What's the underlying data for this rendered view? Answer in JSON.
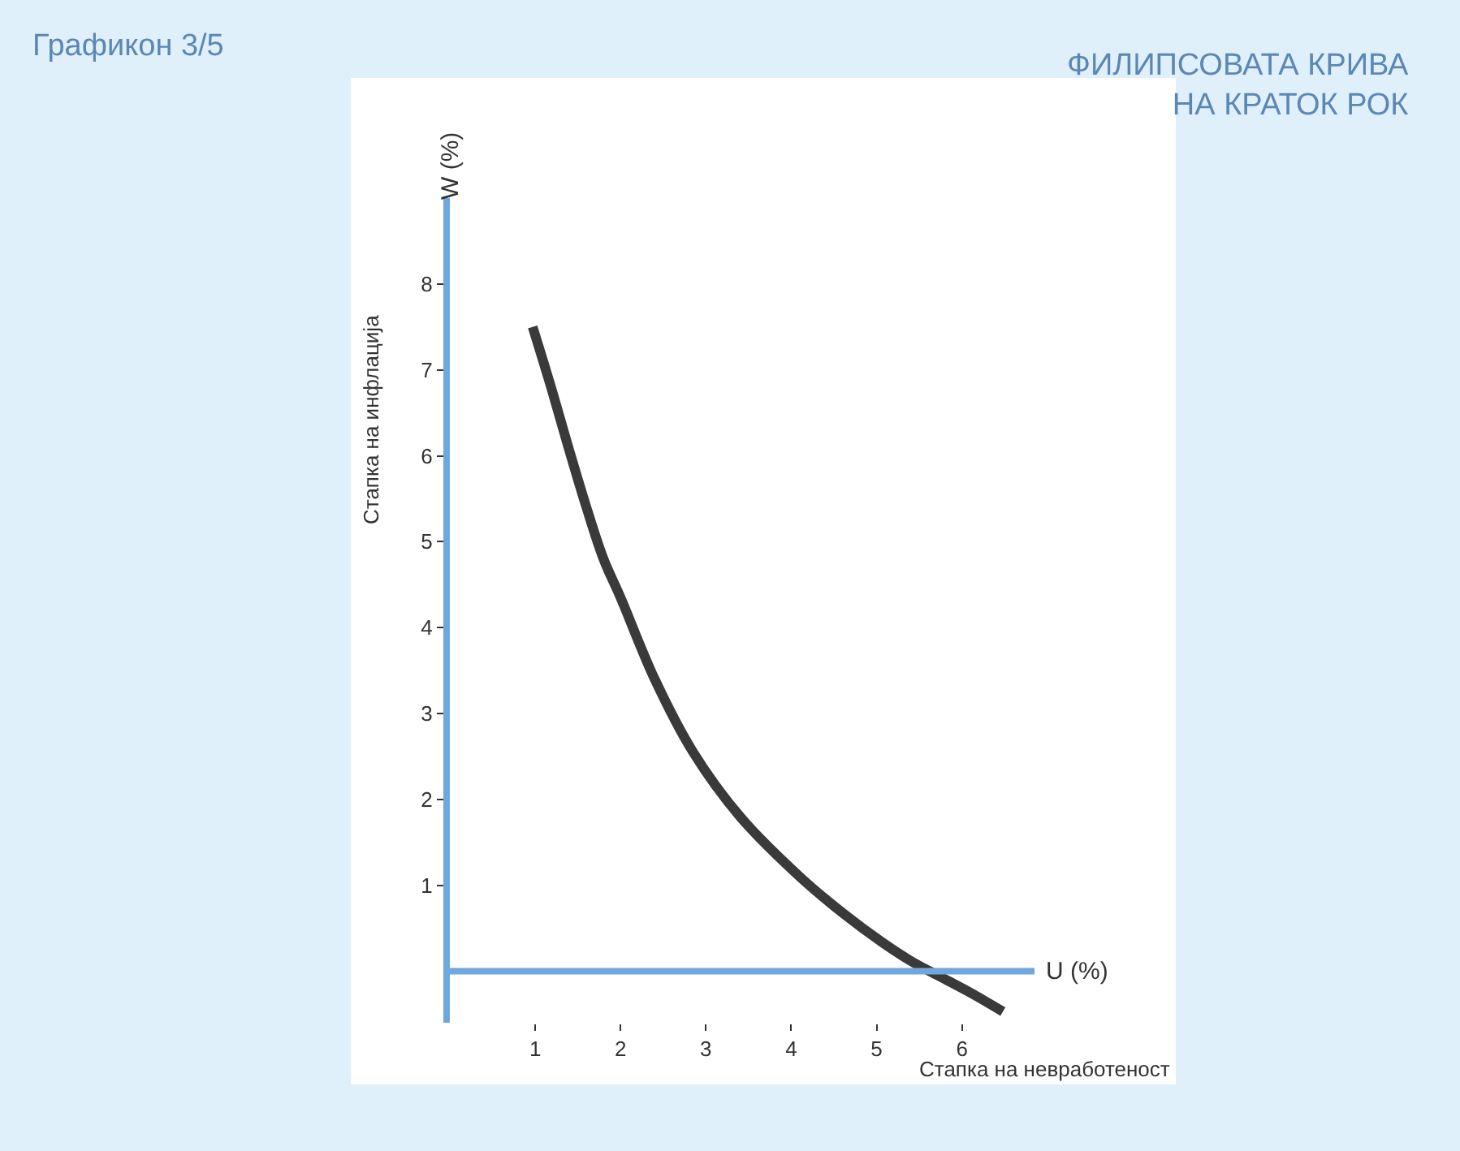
{
  "chart_data": {
    "type": "line",
    "title": "Графикон 3/5",
    "subtitle": "ФИЛИПСОВАТА КРИВА\nНА КРАТОК РОК",
    "xlabel": "Стапка на невработеност",
    "ylabel": "Стапка на инфлација",
    "annotations": [
      "U (%)",
      "W (%)"
    ],
    "xlim": [
      0,
      6.85
    ],
    "ylim": [
      -0.6,
      9
    ],
    "xticks": [
      1,
      2,
      3,
      4,
      5,
      6
    ],
    "yticks": [
      1,
      2,
      3,
      4,
      5,
      6,
      7,
      8
    ],
    "marker": "none",
    "line_style": "solid",
    "ref_lines": [
      {
        "axis": "y",
        "value": 0,
        "color": "#6fa8dc"
      }
    ],
    "series": [
      {
        "color": "#3a3a3a",
        "x": [
          0.97,
          1.2,
          1.4,
          1.6,
          1.8,
          2.0,
          2.4,
          2.85,
          3.4,
          4.1,
          4.6,
          5.06,
          5.4,
          5.7,
          6.1,
          6.48
        ],
        "values": [
          7.5,
          6.75,
          6.06,
          5.4,
          4.8,
          4.35,
          3.4,
          2.55,
          1.8,
          1.1,
          0.68,
          0.34,
          0.12,
          -0.04,
          -0.25,
          -0.47
        ]
      }
    ]
  }
}
